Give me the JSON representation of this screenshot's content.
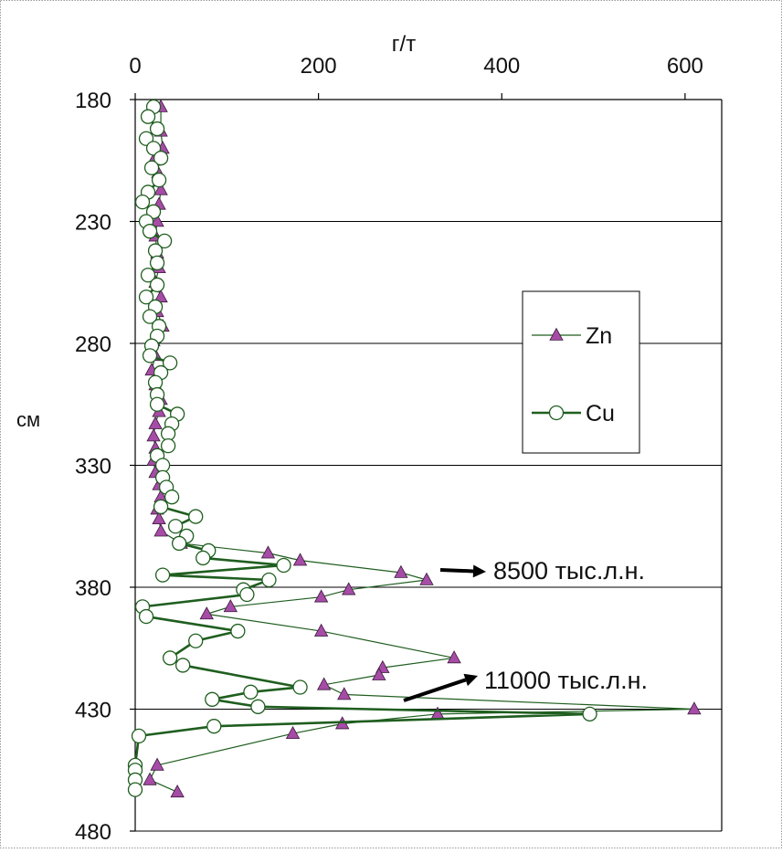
{
  "chart_data": {
    "type": "line",
    "xlabel": "г/т",
    "ylabel": "см",
    "xlim": [
      0,
      640
    ],
    "ylim": [
      180,
      480
    ],
    "x_ticks": [
      "0",
      "200",
      "400",
      "600"
    ],
    "x_tick_values": [
      0,
      200,
      400,
      600
    ],
    "y_ticks": [
      "180",
      "230",
      "280",
      "330",
      "380",
      "430",
      "480"
    ],
    "y_tick_values": [
      180,
      230,
      280,
      330,
      380,
      430,
      480
    ],
    "y_inverted": true,
    "grid": "horizontal",
    "legend_placement": "right",
    "series": [
      {
        "name": "Zn",
        "marker": "triangle",
        "color": "#a64ca6",
        "line_color": "#1f5e1f",
        "points": [
          {
            "y": 183,
            "x": 28
          },
          {
            "y": 193,
            "x": 28
          },
          {
            "y": 200,
            "x": 30
          },
          {
            "y": 205,
            "x": 20
          },
          {
            "y": 210,
            "x": 25
          },
          {
            "y": 217,
            "x": 28
          },
          {
            "y": 223,
            "x": 26
          },
          {
            "y": 230,
            "x": 24
          },
          {
            "y": 236,
            "x": 22
          },
          {
            "y": 243,
            "x": 24
          },
          {
            "y": 249,
            "x": 26
          },
          {
            "y": 255,
            "x": 22
          },
          {
            "y": 261,
            "x": 28
          },
          {
            "y": 267,
            "x": 24
          },
          {
            "y": 273,
            "x": 30
          },
          {
            "y": 279,
            "x": 20
          },
          {
            "y": 285,
            "x": 22
          },
          {
            "y": 291,
            "x": 18
          },
          {
            "y": 297,
            "x": 22
          },
          {
            "y": 303,
            "x": 28
          },
          {
            "y": 308,
            "x": 26
          },
          {
            "y": 313,
            "x": 22
          },
          {
            "y": 318,
            "x": 20
          },
          {
            "y": 323,
            "x": 22
          },
          {
            "y": 328,
            "x": 20
          },
          {
            "y": 333,
            "x": 22
          },
          {
            "y": 338,
            "x": 26
          },
          {
            "y": 343,
            "x": 28
          },
          {
            "y": 348,
            "x": 24
          },
          {
            "y": 352,
            "x": 26
          },
          {
            "y": 357,
            "x": 28
          },
          {
            "y": 362,
            "x": 50
          },
          {
            "y": 366,
            "x": 145
          },
          {
            "y": 369,
            "x": 180
          },
          {
            "y": 374,
            "x": 290
          },
          {
            "y": 377,
            "x": 318
          },
          {
            "y": 381,
            "x": 233
          },
          {
            "y": 384,
            "x": 203
          },
          {
            "y": 388,
            "x": 104
          },
          {
            "y": 391,
            "x": 78
          },
          {
            "y": 398,
            "x": 203
          },
          {
            "y": 409,
            "x": 348
          },
          {
            "y": 413,
            "x": 270
          },
          {
            "y": 416,
            "x": 266
          },
          {
            "y": 420,
            "x": 206
          },
          {
            "y": 424,
            "x": 228
          },
          {
            "y": 430,
            "x": 610
          },
          {
            "y": 432,
            "x": 330
          },
          {
            "y": 436,
            "x": 226
          },
          {
            "y": 440,
            "x": 172
          },
          {
            "y": 453,
            "x": 24
          },
          {
            "y": 459,
            "x": 16
          },
          {
            "y": 464,
            "x": 46
          }
        ]
      },
      {
        "name": "Cu",
        "marker": "circle",
        "color": "#ffffff",
        "line_color": "#1f5e1f",
        "points": [
          {
            "y": 183,
            "x": 20
          },
          {
            "y": 187,
            "x": 14
          },
          {
            "y": 192,
            "x": 24
          },
          {
            "y": 196,
            "x": 12
          },
          {
            "y": 200,
            "x": 20
          },
          {
            "y": 204,
            "x": 28
          },
          {
            "y": 208,
            "x": 18
          },
          {
            "y": 213,
            "x": 26
          },
          {
            "y": 218,
            "x": 14
          },
          {
            "y": 222,
            "x": 8
          },
          {
            "y": 226,
            "x": 20
          },
          {
            "y": 230,
            "x": 12
          },
          {
            "y": 234,
            "x": 16
          },
          {
            "y": 238,
            "x": 32
          },
          {
            "y": 242,
            "x": 22
          },
          {
            "y": 247,
            "x": 24
          },
          {
            "y": 252,
            "x": 14
          },
          {
            "y": 256,
            "x": 24
          },
          {
            "y": 261,
            "x": 12
          },
          {
            "y": 265,
            "x": 22
          },
          {
            "y": 269,
            "x": 16
          },
          {
            "y": 273,
            "x": 26
          },
          {
            "y": 277,
            "x": 24
          },
          {
            "y": 281,
            "x": 18
          },
          {
            "y": 285,
            "x": 16
          },
          {
            "y": 288,
            "x": 38
          },
          {
            "y": 292,
            "x": 28
          },
          {
            "y": 296,
            "x": 22
          },
          {
            "y": 301,
            "x": 24
          },
          {
            "y": 305,
            "x": 24
          },
          {
            "y": 309,
            "x": 46
          },
          {
            "y": 313,
            "x": 40
          },
          {
            "y": 317,
            "x": 36
          },
          {
            "y": 322,
            "x": 36
          },
          {
            "y": 326,
            "x": 24
          },
          {
            "y": 330,
            "x": 30
          },
          {
            "y": 335,
            "x": 30
          },
          {
            "y": 339,
            "x": 34
          },
          {
            "y": 343,
            "x": 40
          },
          {
            "y": 347,
            "x": 28
          },
          {
            "y": 351,
            "x": 66
          },
          {
            "y": 355,
            "x": 44
          },
          {
            "y": 359,
            "x": 56
          },
          {
            "y": 362,
            "x": 48
          },
          {
            "y": 365,
            "x": 80
          },
          {
            "y": 368,
            "x": 74
          },
          {
            "y": 371,
            "x": 162
          },
          {
            "y": 375,
            "x": 30
          },
          {
            "y": 377,
            "x": 146
          },
          {
            "y": 381,
            "x": 118
          },
          {
            "y": 383,
            "x": 122
          },
          {
            "y": 388,
            "x": 8
          },
          {
            "y": 392,
            "x": 12
          },
          {
            "y": 398,
            "x": 112
          },
          {
            "y": 402,
            "x": 66
          },
          {
            "y": 409,
            "x": 38
          },
          {
            "y": 412,
            "x": 52
          },
          {
            "y": 421,
            "x": 180
          },
          {
            "y": 423,
            "x": 126
          },
          {
            "y": 426,
            "x": 84
          },
          {
            "y": 429,
            "x": 134
          },
          {
            "y": 432,
            "x": 496
          },
          {
            "y": 437,
            "x": 86
          },
          {
            "y": 441,
            "x": 4
          },
          {
            "y": 453,
            "x": 0
          },
          {
            "y": 455,
            "x": 0
          },
          {
            "y": 459,
            "x": 0
          },
          {
            "y": 463,
            "x": 0
          }
        ]
      }
    ],
    "annotations": [
      {
        "text": "8500 тыс.л.н.",
        "target_y": 379
      },
      {
        "text": "11000 тыс.л.н.",
        "target_y": 429
      }
    ]
  }
}
